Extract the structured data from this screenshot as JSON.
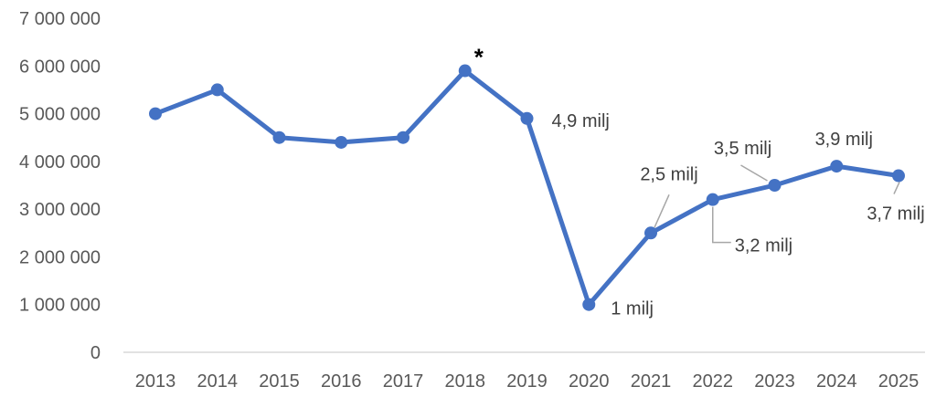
{
  "chart_data": {
    "type": "line",
    "title": "",
    "xlabel": "",
    "ylabel": "",
    "x": [
      "2013",
      "2014",
      "2015",
      "2016",
      "2017",
      "2018",
      "2019",
      "2020",
      "2021",
      "2022",
      "2023",
      "2024",
      "2025"
    ],
    "series": [
      {
        "values": [
          5000000,
          5500000,
          4500000,
          4400000,
          4500000,
          5900000,
          4900000,
          1000000,
          2500000,
          3200000,
          3500000,
          3900000,
          3700000
        ]
      }
    ],
    "ylim": [
      0,
      7000000
    ],
    "yticks": [
      0,
      1000000,
      2000000,
      3000000,
      4000000,
      5000000,
      6000000,
      7000000
    ],
    "ytick_labels": [
      "0",
      "1 000 000",
      "2 000 000",
      "3 000 000",
      "4 000 000",
      "5 000 000",
      "6 000 000",
      "7 000 000"
    ],
    "grid": false,
    "legend": "none",
    "line_color": "#4472C4",
    "axis_color": "#D9D9D9",
    "annotations": [
      {
        "x": "2018",
        "text": "*"
      },
      {
        "x": "2019",
        "text": "4,9 milj"
      },
      {
        "x": "2020",
        "text": "1 milj"
      },
      {
        "x": "2021",
        "text": "2,5 milj"
      },
      {
        "x": "2022",
        "text": "3,2 milj"
      },
      {
        "x": "2023",
        "text": "3,5 milj"
      },
      {
        "x": "2024",
        "text": "3,9 milj"
      },
      {
        "x": "2025",
        "text": "3,7 milj"
      }
    ]
  }
}
